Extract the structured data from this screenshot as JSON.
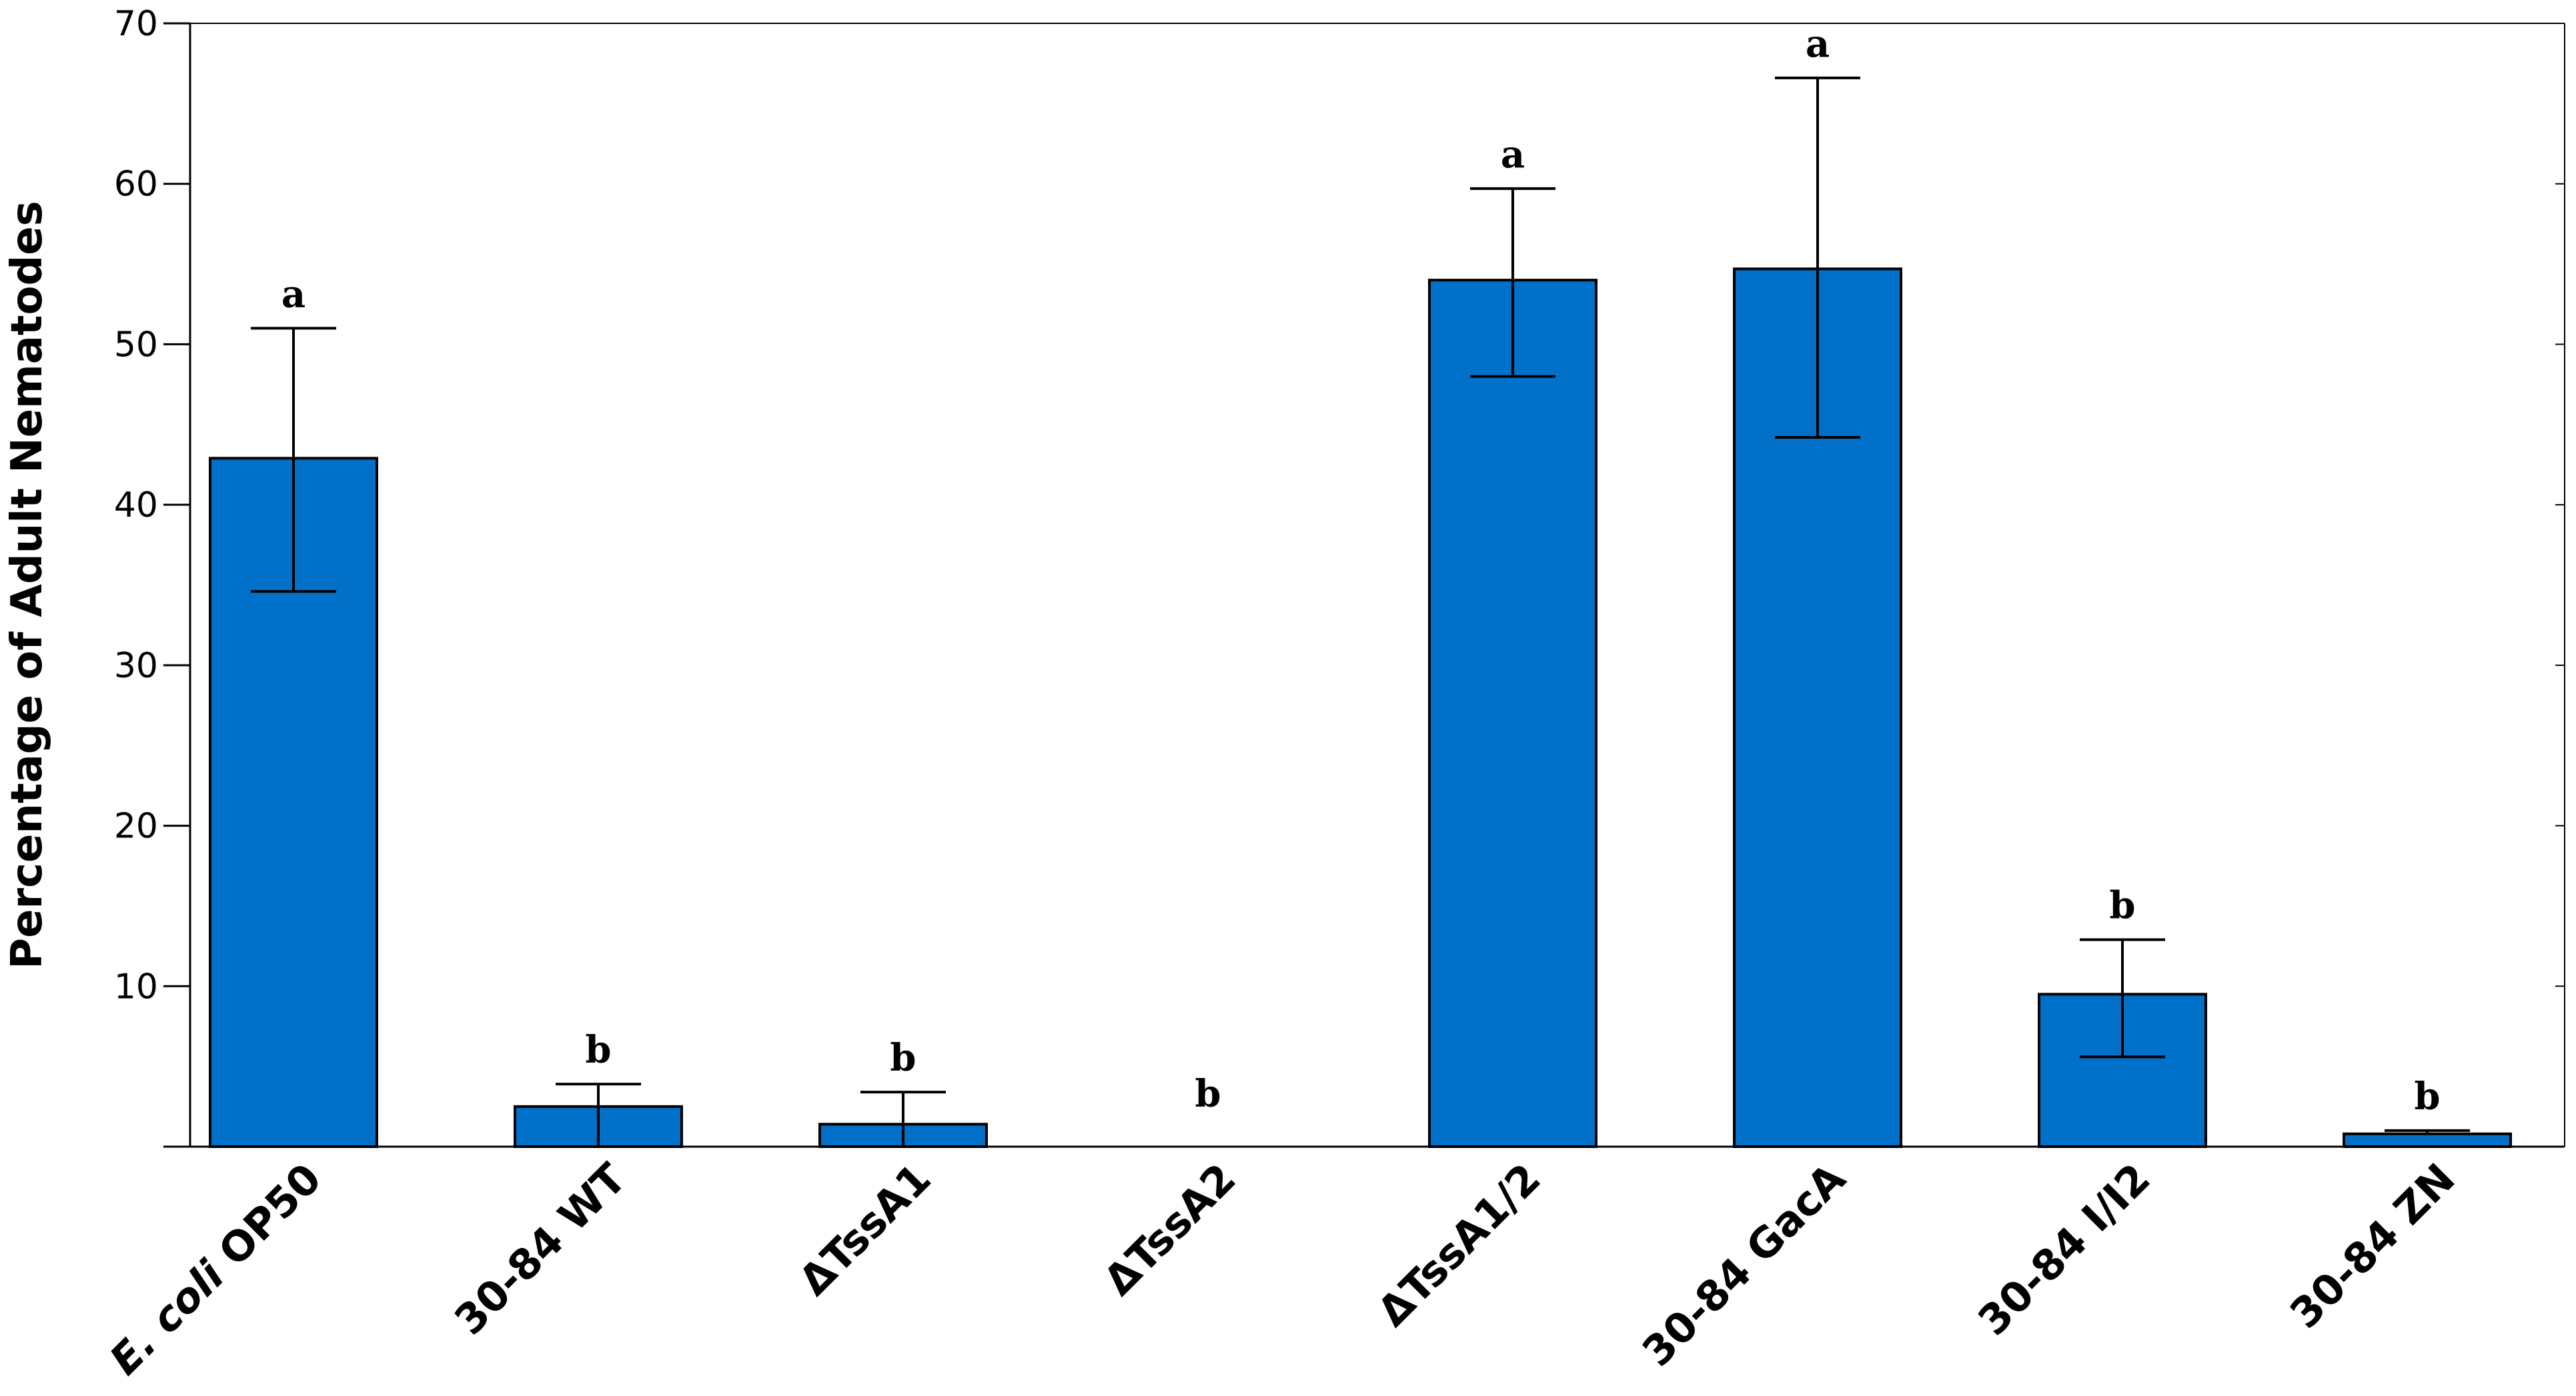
{
  "chart_data": {
    "type": "bar",
    "ylabel": "Percentage of Adult Nematodes",
    "xlabel": "",
    "title": "",
    "ylim": [
      0,
      70
    ],
    "yticks": [
      10,
      20,
      30,
      40,
      50,
      60,
      70
    ],
    "ytick_labels": [
      "10",
      "20",
      "30",
      "40",
      "50",
      "60",
      "70"
    ],
    "grid": false,
    "legend": "none",
    "bar_color": "#0070C8",
    "categories": [
      {
        "label": "E. coli OP50",
        "italic_part": "E. coli",
        "plain_part": "OP50"
      },
      {
        "label": "30-84 WT"
      },
      {
        "label": "ΔTssA1"
      },
      {
        "label": "ΔTssA2"
      },
      {
        "label": "ΔTssA1/2"
      },
      {
        "label": "30-84 GacA"
      },
      {
        "label": "30-84 I/I2"
      },
      {
        "label": "30-84 ZN"
      }
    ],
    "values": [
      42.9,
      2.5,
      1.4,
      0,
      54.0,
      54.7,
      9.5,
      0.8
    ],
    "error_upper": [
      51.0,
      3.9,
      3.4,
      null,
      59.7,
      66.6,
      12.9,
      1.0
    ],
    "error_lower": [
      34.6,
      0,
      0,
      null,
      48.0,
      44.2,
      5.6,
      null
    ],
    "significance": [
      "a",
      "b",
      "b",
      "b",
      "a",
      "a",
      "b",
      "b"
    ]
  }
}
